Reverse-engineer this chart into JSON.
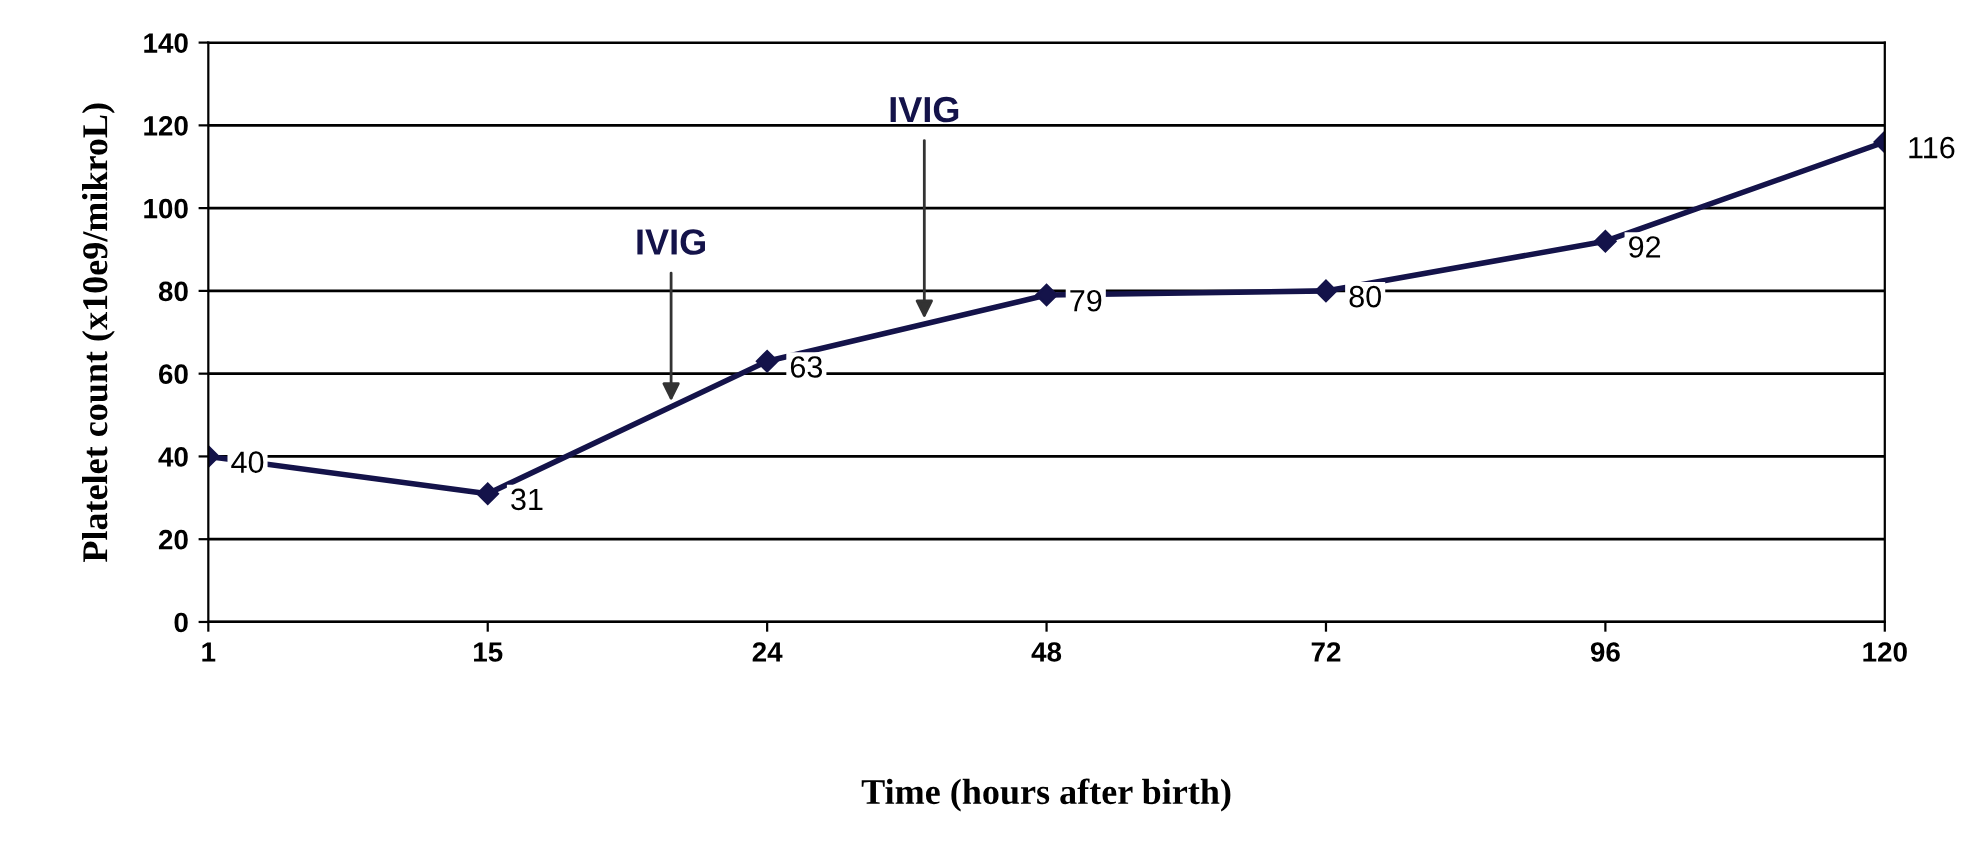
{
  "chart_data": {
    "type": "line",
    "xlabel": "Time (hours after birth)",
    "ylabel": "Platelet count (x10e9/mikroL)",
    "categories": [
      "1",
      "15",
      "24",
      "48",
      "72",
      "96",
      "120"
    ],
    "series": [
      {
        "color": "#14134a",
        "values": [
          40,
          31,
          63,
          79,
          80,
          92,
          116
        ]
      }
    ],
    "data_labels": true,
    "ylim": [
      0,
      140
    ],
    "yticks": [
      0,
      20,
      40,
      60,
      80,
      100,
      120,
      140
    ],
    "grid": "y",
    "marker": "diamond",
    "line_style": "solid",
    "annotations": [
      {
        "text": "IVIG",
        "y": 52
      },
      {
        "text": "IVIG",
        "y": 72
      }
    ]
  }
}
